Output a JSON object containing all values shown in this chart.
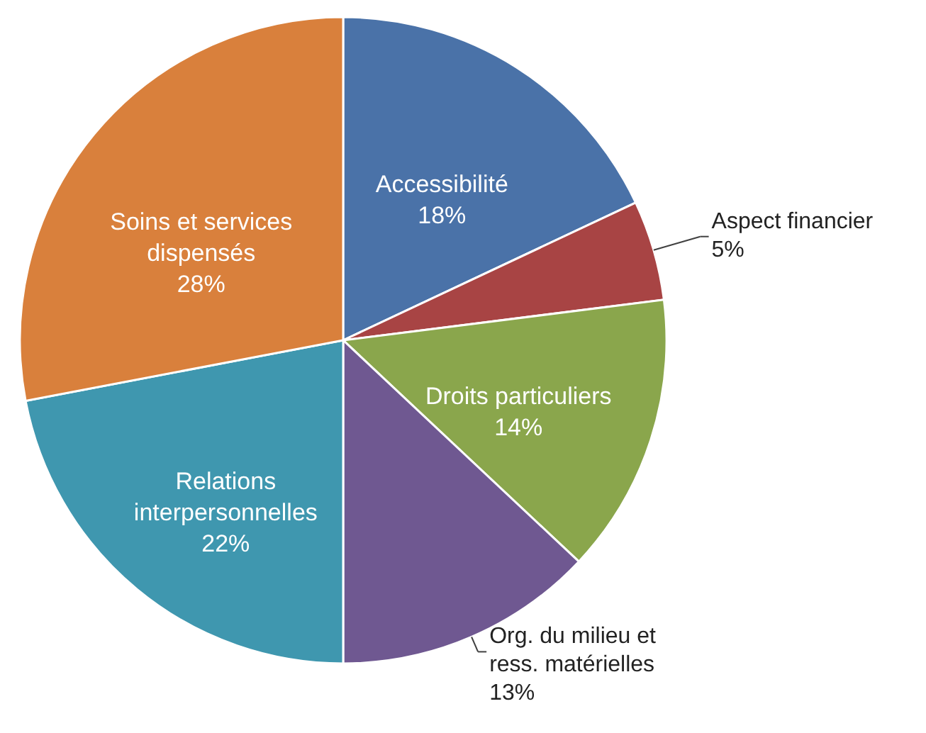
{
  "chart_data": {
    "type": "pie",
    "categories": [
      "Accessibilité",
      "Aspect financier",
      "Droits particuliers",
      "Org. du milieu et ress. matérielles",
      "Relations interpersonnelles",
      "Soins et services dispensés"
    ],
    "values": [
      18,
      5,
      14,
      13,
      22,
      28
    ],
    "value_labels": [
      "18%",
      "5%",
      "14%",
      "13%",
      "22%",
      "28%"
    ],
    "colors": [
      "#4a72a8",
      "#a84444",
      "#8aa64c",
      "#6f5891",
      "#3f97af",
      "#d9803c"
    ]
  }
}
